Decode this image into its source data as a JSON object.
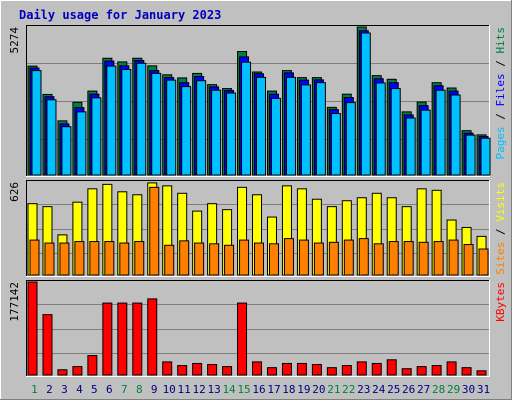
{
  "chart_data": {
    "type": "bar",
    "title": "Daily usage for January 2023",
    "categories": [
      "1",
      "2",
      "3",
      "4",
      "5",
      "6",
      "7",
      "8",
      "9",
      "10",
      "11",
      "12",
      "13",
      "14",
      "15",
      "16",
      "17",
      "18",
      "19",
      "20",
      "21",
      "22",
      "23",
      "24",
      "25",
      "26",
      "27",
      "28",
      "29",
      "30",
      "31"
    ],
    "weekend_days": [
      "1",
      "7",
      "8",
      "14",
      "15",
      "21",
      "22",
      "28",
      "29"
    ],
    "panels": [
      {
        "id": "hits",
        "max_label": "5274",
        "ylim": [
          0,
          5274
        ],
        "labels": [
          "Pages",
          "Files",
          "Hits"
        ],
        "series": [
          {
            "name": "Hits",
            "color": "#008040",
            "values": [
              3880,
              2870,
              1930,
              2590,
              2990,
              4160,
              4030,
              4160,
              3890,
              3570,
              3460,
              3620,
              3220,
              3080,
              4400,
              3670,
              2990,
              3720,
              3470,
              3470,
              2410,
              2880,
              5274,
              3540,
              3410,
              2250,
              2600,
              3290,
              3100,
              1580,
              1430
            ]
          },
          {
            "name": "Files",
            "color": "#0000ff",
            "values": [
              3810,
              2790,
              1820,
              2400,
              2880,
              4060,
              3890,
              4080,
              3720,
              3470,
              3290,
              3510,
              3140,
              3010,
              4210,
              3610,
              2880,
              3640,
              3380,
              3390,
              2330,
              2760,
              5140,
              3430,
              3290,
              2140,
              2470,
              3180,
              2990,
              1490,
              1370
            ]
          },
          {
            "name": "Pages",
            "color": "#00c0ff",
            "values": [
              3720,
              2680,
              1720,
              2250,
              2750,
              3880,
              3760,
              3980,
              3620,
              3380,
              3150,
              3360,
              3020,
              2920,
              4020,
              3480,
              2730,
              3480,
              3210,
              3290,
              2190,
              2580,
              5060,
              3280,
              3080,
              2030,
              2310,
              3020,
              2850,
              1420,
              1310
            ]
          }
        ]
      },
      {
        "id": "visits",
        "max_label": "626",
        "ylim": [
          0,
          626
        ],
        "labels": [
          "Sites",
          "Visits"
        ],
        "series": [
          {
            "name": "Visits",
            "color": "#ffff00",
            "values": [
              480,
              460,
              270,
              490,
              580,
              610,
              560,
              540,
              620,
              600,
              550,
              430,
              480,
              440,
              590,
              540,
              390,
              600,
              580,
              510,
              460,
              500,
              520,
              550,
              520,
              460,
              580,
              570,
              370,
              320,
              260
            ]
          },
          {
            "name": "Sites",
            "color": "#ff8000",
            "values": [
              235,
              215,
              215,
              225,
              225,
              225,
              215,
              225,
              590,
              200,
              230,
              215,
              210,
              200,
              235,
              215,
              210,
              245,
              235,
              215,
              220,
              235,
              245,
              210,
              225,
              225,
              220,
              225,
              235,
              205,
              175
            ]
          }
        ]
      },
      {
        "id": "kbytes",
        "max_label": "177142",
        "ylim": [
          0,
          177142
        ],
        "labels": [
          "KBytes"
        ],
        "series": [
          {
            "name": "KBytes",
            "color": "#ff0000",
            "values": [
              177142,
              115000,
              10000,
              16000,
              37000,
              137000,
              137000,
              137000,
              145000,
              25000,
              18000,
              22000,
              20000,
              16000,
              137000,
              25000,
              14000,
              22000,
              22000,
              20000,
              14000,
              18000,
              25000,
              22000,
              29000,
              12000,
              16000,
              18000,
              25000,
              14000,
              8000
            ]
          }
        ]
      }
    ],
    "day_color_normal": "#000080",
    "day_color_weekend": "#008040",
    "grid": true
  }
}
